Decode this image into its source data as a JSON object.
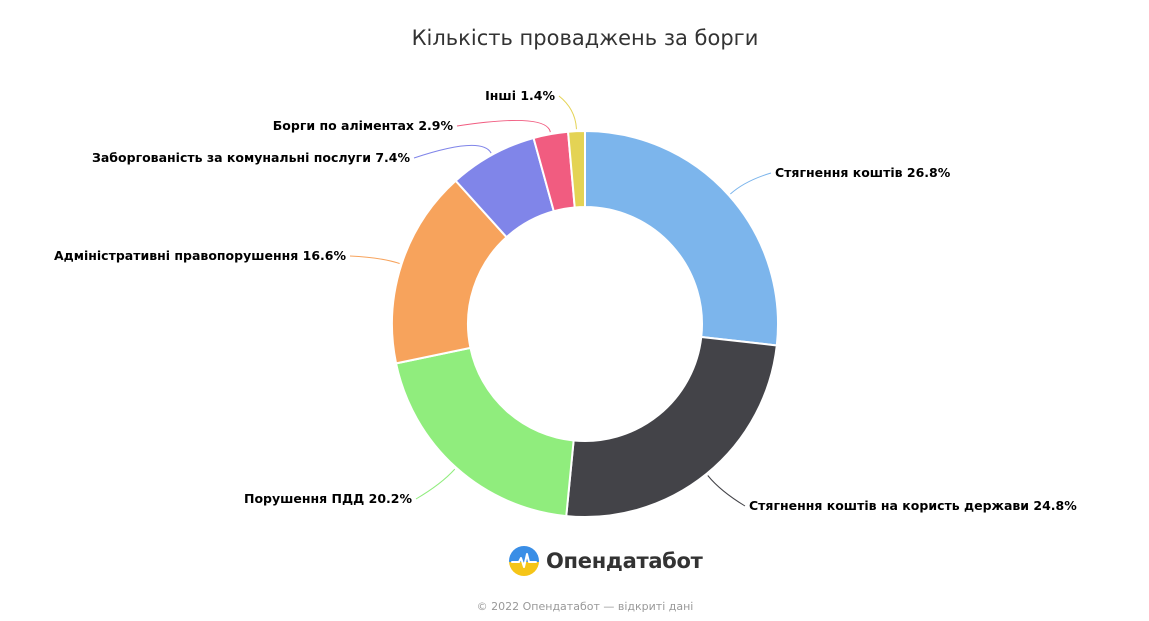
{
  "chart_data": {
    "type": "pie",
    "subtype": "donut",
    "title": "Кількість проваджень за борги",
    "unit": "%",
    "slices": [
      {
        "label": "Стягнення коштів",
        "value": 26.8,
        "color": "#7cb5ec"
      },
      {
        "label": "Стягнення коштів на користь держави",
        "value": 24.8,
        "color": "#434348"
      },
      {
        "label": "Порушення ПДД",
        "value": 20.2,
        "color": "#90ed7d"
      },
      {
        "label": "Адміністративні правопорушення",
        "value": 16.6,
        "color": "#f7a35c"
      },
      {
        "label": "Заборгованість за комунальні послуги",
        "value": 7.4,
        "color": "#8085e9"
      },
      {
        "label": "Борги по аліментах",
        "value": 2.9,
        "color": "#f15c80"
      },
      {
        "label": "Інші",
        "value": 1.4,
        "color": "#e4d354"
      }
    ]
  },
  "brand": {
    "name": "Опендатабот",
    "logo_icon": "opendatabot-logo-icon"
  },
  "footer": {
    "text": "© 2022 Опендатабот — відкриті дані"
  }
}
